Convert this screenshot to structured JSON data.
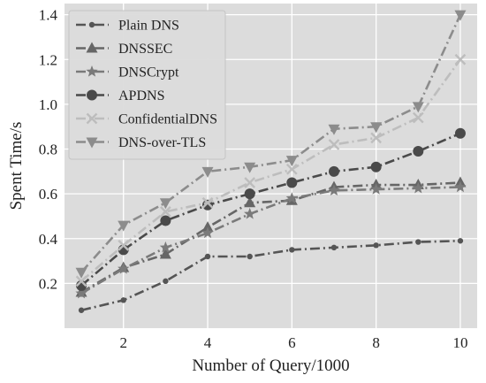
{
  "chart_data": {
    "type": "line",
    "title": "",
    "xlabel": "Number of Query/1000",
    "ylabel": "Spent Time/s",
    "xlim": [
      0.6,
      10.4
    ],
    "ylim": [
      0.0,
      1.45
    ],
    "xticks": [
      2,
      4,
      6,
      8,
      10
    ],
    "yticks": [
      0.2,
      0.4,
      0.6,
      0.8,
      1.0,
      1.2,
      1.4
    ],
    "xtick_labels": [
      "2",
      "4",
      "6",
      "8",
      "10"
    ],
    "ytick_labels": [
      "0.2",
      "0.4",
      "0.6",
      "0.8",
      "1.0",
      "1.2",
      "1.4"
    ],
    "grid": true,
    "legend_position": "top-left",
    "background": "#dcdcdc",
    "x": [
      1,
      2,
      3,
      4,
      5,
      6,
      7,
      8,
      9,
      10
    ],
    "series": [
      {
        "name": "Plain DNS",
        "marker": "point",
        "color": "#555555",
        "values": [
          0.08,
          0.125,
          0.21,
          0.32,
          0.32,
          0.35,
          0.36,
          0.37,
          0.385,
          0.39
        ]
      },
      {
        "name": "DNSSEC",
        "marker": "triangle-up",
        "color": "#666666",
        "values": [
          0.16,
          0.27,
          0.33,
          0.45,
          0.56,
          0.57,
          0.63,
          0.64,
          0.64,
          0.65
        ]
      },
      {
        "name": "DNSCrypt",
        "marker": "star",
        "color": "#7a7a7a",
        "values": [
          0.155,
          0.265,
          0.36,
          0.425,
          0.51,
          0.58,
          0.615,
          0.62,
          0.625,
          0.63
        ]
      },
      {
        "name": "APDNS",
        "marker": "circle",
        "color": "#4a4a4a",
        "values": [
          0.19,
          0.35,
          0.48,
          0.55,
          0.6,
          0.65,
          0.7,
          0.72,
          0.79,
          0.87
        ]
      },
      {
        "name": "ConfidentialDNS",
        "marker": "x",
        "color": "#bdbdbd",
        "values": [
          0.21,
          0.37,
          0.52,
          0.56,
          0.65,
          0.71,
          0.82,
          0.85,
          0.94,
          1.2
        ]
      },
      {
        "name": "DNS-over-TLS",
        "marker": "triangle-down",
        "color": "#8c8c8c",
        "values": [
          0.25,
          0.46,
          0.56,
          0.7,
          0.72,
          0.75,
          0.89,
          0.9,
          0.99,
          1.4
        ]
      }
    ]
  }
}
